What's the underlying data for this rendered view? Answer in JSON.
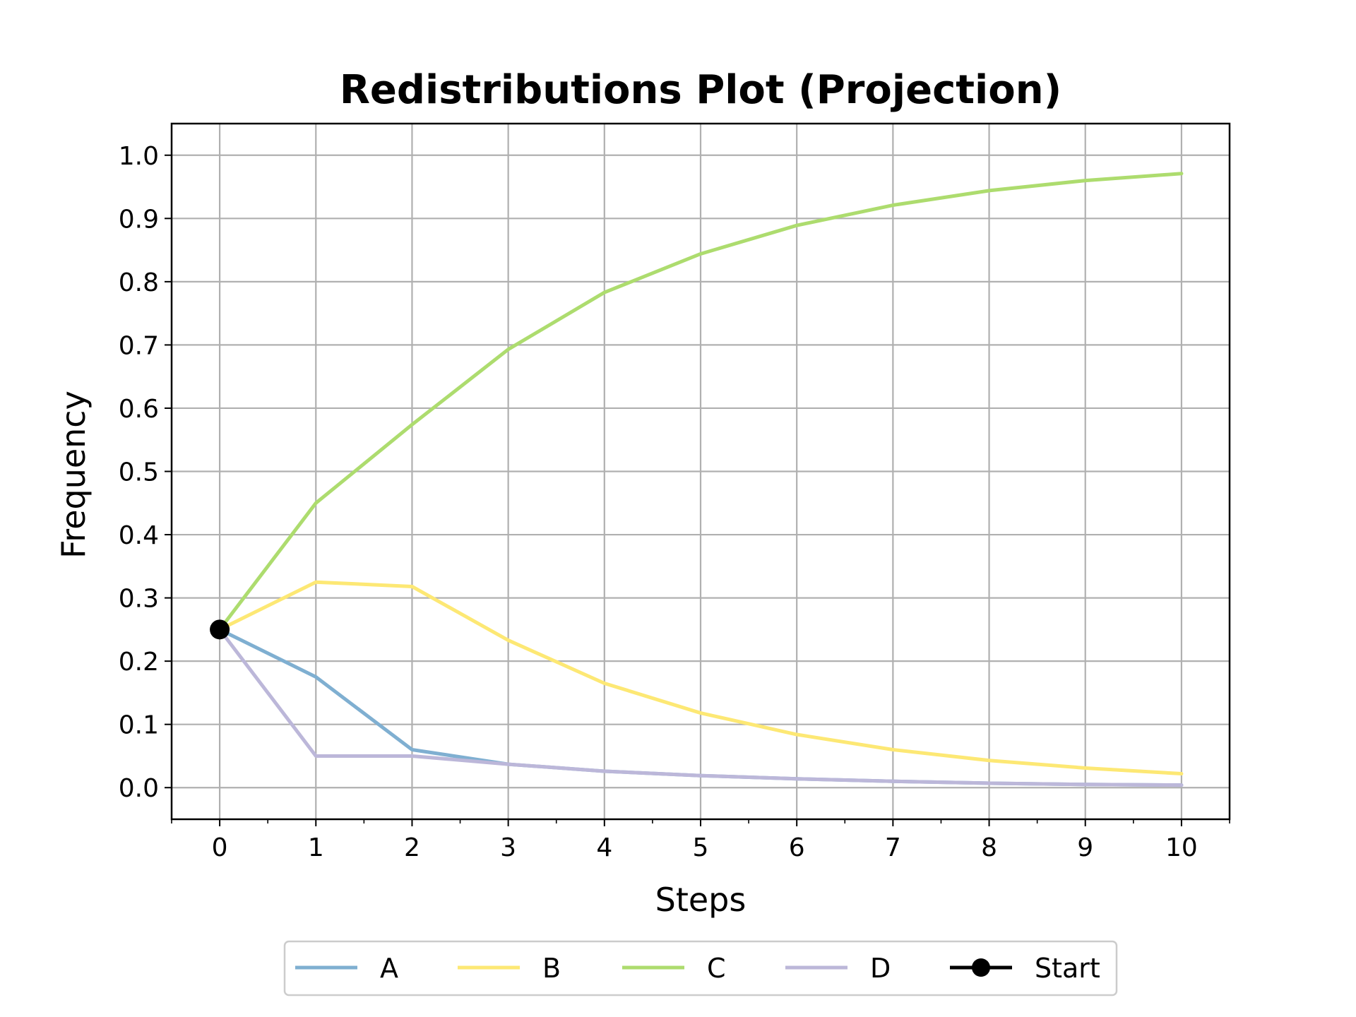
{
  "chart_data": {
    "type": "line",
    "title": "Redistributions Plot (Projection)",
    "xlabel": "Steps",
    "ylabel": "Frequency",
    "xlim": [
      -0.5,
      10.5
    ],
    "ylim": [
      -0.05,
      1.05
    ],
    "x_ticks": [
      0,
      1,
      2,
      3,
      4,
      5,
      6,
      7,
      8,
      9,
      10
    ],
    "x_tick_labels": [
      "0",
      "1",
      "2",
      "3",
      "4",
      "5",
      "6",
      "7",
      "8",
      "9",
      "10"
    ],
    "y_ticks": [
      0.0,
      0.1,
      0.2,
      0.3,
      0.4,
      0.5,
      0.6,
      0.7,
      0.8,
      0.9,
      1.0
    ],
    "y_tick_labels": [
      "0.0",
      "0.1",
      "0.2",
      "0.3",
      "0.4",
      "0.5",
      "0.6",
      "0.7",
      "0.8",
      "0.9",
      "1.0"
    ],
    "grid": true,
    "legend_position": "bottom-center",
    "x": [
      0,
      1,
      2,
      3,
      4,
      5,
      6,
      7,
      8,
      9,
      10
    ],
    "series": [
      {
        "name": "A",
        "color": "#7fafd1",
        "values": [
          0.25,
          0.175,
          0.06,
          0.037,
          0.026,
          0.019,
          0.014,
          0.01,
          0.007,
          0.005,
          0.004
        ]
      },
      {
        "name": "B",
        "color": "#fde874",
        "values": [
          0.25,
          0.325,
          0.318,
          0.233,
          0.165,
          0.118,
          0.084,
          0.06,
          0.043,
          0.031,
          0.022
        ]
      },
      {
        "name": "C",
        "color": "#addc6e",
        "values": [
          0.25,
          0.45,
          0.574,
          0.693,
          0.783,
          0.844,
          0.889,
          0.921,
          0.944,
          0.96,
          0.971
        ]
      },
      {
        "name": "D",
        "color": "#bcb7d9",
        "values": [
          0.25,
          0.05,
          0.05,
          0.037,
          0.026,
          0.019,
          0.014,
          0.01,
          0.007,
          0.005,
          0.004
        ]
      }
    ],
    "start_point": {
      "name": "Start",
      "x": 0,
      "y": 0.25,
      "color": "#000000"
    }
  }
}
